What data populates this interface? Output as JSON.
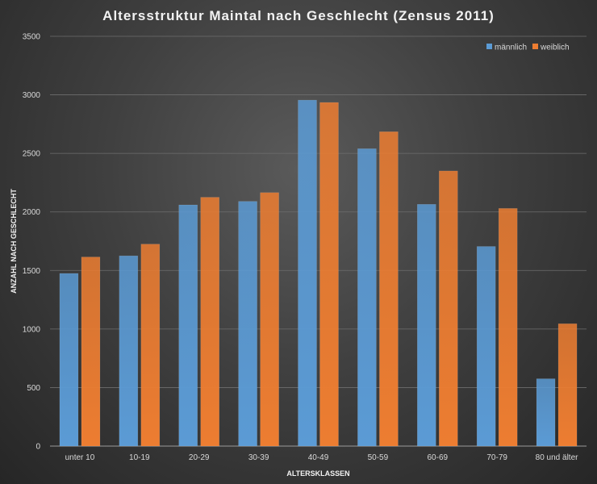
{
  "chart_data": {
    "type": "bar",
    "title": "Altersstruktur Maintal nach Geschlecht (Zensus 2011)",
    "xlabel": "ALTERSKLASSEN",
    "ylabel": "ANZAHL NACH GESCHLECHT",
    "categories": [
      "unter 10",
      "10-19",
      "20-29",
      "30-39",
      "40-49",
      "50-59",
      "60-69",
      "70-79",
      "80 und älter"
    ],
    "series": [
      {
        "name": "männlich",
        "color": "#5b9bd5",
        "values": [
          1475,
          1625,
          2060,
          2090,
          2955,
          2540,
          2065,
          1705,
          575
        ]
      },
      {
        "name": "weiblich",
        "color": "#ed7d31",
        "values": [
          1615,
          1725,
          2125,
          2165,
          2935,
          2685,
          2350,
          2030,
          1045
        ]
      }
    ],
    "ylim": [
      0,
      3500
    ],
    "yticks": [
      "0",
      "500",
      "1000",
      "1500",
      "2000",
      "2500",
      "3000",
      "3500"
    ],
    "grid": true,
    "legend_position": "top-right"
  }
}
